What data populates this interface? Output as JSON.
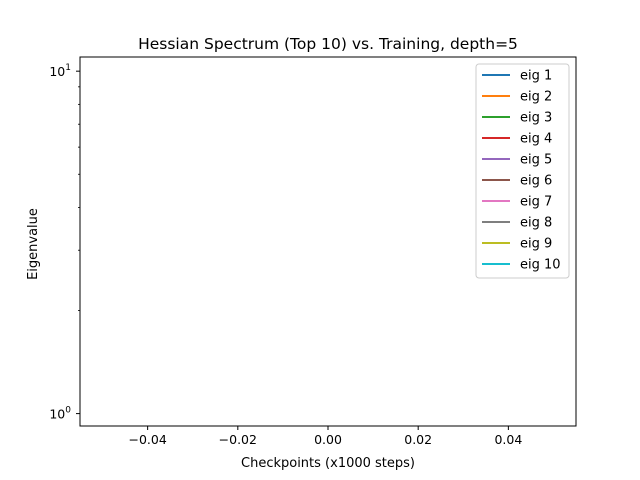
{
  "chart_data": {
    "type": "line",
    "title": "Hessian Spectrum (Top 10) vs. Training, depth=5",
    "xlabel": "Checkpoints (x1000 steps)",
    "ylabel": "Eigenvalue",
    "xlim": [
      -0.055,
      0.055
    ],
    "ylim": [
      0.92,
      11.0
    ],
    "y_scale": "log",
    "x_ticks": [
      -0.04,
      -0.02,
      0.0,
      0.02,
      0.04
    ],
    "x_tick_labels": [
      "−0.04",
      "−0.02",
      "0.00",
      "0.02",
      "0.04"
    ],
    "y_ticks": [
      1,
      10
    ],
    "y_tick_base": "10",
    "y_tick_exponents": [
      "0",
      "1"
    ],
    "grid": false,
    "legend_position": "top-right",
    "series": [
      {
        "name": "eig 1",
        "color": "#1f77b4",
        "x": [],
        "y": []
      },
      {
        "name": "eig 2",
        "color": "#ff7f0e",
        "x": [],
        "y": []
      },
      {
        "name": "eig 3",
        "color": "#2ca02c",
        "x": [],
        "y": []
      },
      {
        "name": "eig 4",
        "color": "#d62728",
        "x": [],
        "y": []
      },
      {
        "name": "eig 5",
        "color": "#9467bd",
        "x": [],
        "y": []
      },
      {
        "name": "eig 6",
        "color": "#8c564b",
        "x": [],
        "y": []
      },
      {
        "name": "eig 7",
        "color": "#e377c2",
        "x": [],
        "y": []
      },
      {
        "name": "eig 8",
        "color": "#7f7f7f",
        "x": [],
        "y": []
      },
      {
        "name": "eig 9",
        "color": "#bcbd22",
        "x": [],
        "y": []
      },
      {
        "name": "eig 10",
        "color": "#17becf",
        "x": [],
        "y": []
      }
    ]
  }
}
